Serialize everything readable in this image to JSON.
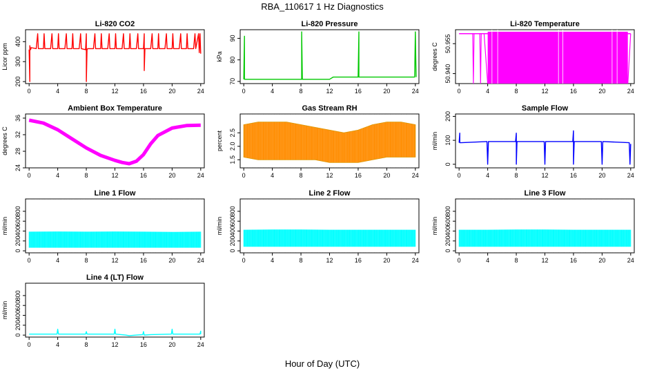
{
  "figure": {
    "title": "RBA_110617  1 Hz Diagnostics",
    "xlabel": "Hour of Day (UTC)"
  },
  "chart_data": [
    {
      "type": "line",
      "title": "Li-820 CO2",
      "ylabel": "Licor ppm",
      "color": "#ff0000",
      "xlim": [
        0,
        24
      ],
      "ylim": [
        190,
        460
      ],
      "xticks": [
        "0",
        "4",
        "8",
        "12",
        "16",
        "20",
        "24"
      ],
      "yticks": [
        "200",
        "300",
        "400"
      ],
      "ytick_values": [
        200,
        300,
        400
      ],
      "series": [
        {
          "x": [
            0.0,
            0.1,
            0.1,
            0.2,
            0.3,
            1.0,
            1.2,
            1.3,
            2.0,
            2.1,
            2.2,
            3.0,
            3.2,
            3.3,
            4.0,
            4.1,
            4.2,
            5.0,
            5.2,
            5.3,
            6.0,
            6.1,
            6.2,
            7.0,
            7.2,
            7.3,
            7.9,
            8.0,
            8.0,
            8.1,
            8.2,
            9.0,
            9.2,
            9.3,
            10.0,
            10.1,
            10.2,
            11.0,
            11.2,
            11.3,
            12.0,
            12.1,
            12.2,
            13.0,
            13.2,
            13.3,
            14.0,
            14.1,
            14.2,
            15.0,
            15.2,
            15.3,
            16.0,
            16.1,
            16.1,
            16.2,
            17.0,
            17.2,
            17.3,
            18.0,
            18.1,
            18.2,
            19.0,
            19.2,
            19.3,
            20.0,
            20.1,
            20.2,
            21.0,
            21.2,
            21.3,
            22.0,
            22.1,
            22.2,
            23.0,
            23.2,
            23.3,
            23.7,
            23.8,
            23.9,
            24.0
          ],
          "y": [
            360,
            200,
            380,
            360,
            370,
            365,
            440,
            365,
            365,
            440,
            365,
            365,
            440,
            365,
            365,
            440,
            365,
            365,
            440,
            365,
            365,
            440,
            365,
            365,
            440,
            365,
            360,
            440,
            200,
            360,
            365,
            365,
            440,
            365,
            365,
            440,
            365,
            365,
            440,
            365,
            365,
            440,
            365,
            365,
            440,
            365,
            365,
            440,
            365,
            365,
            440,
            365,
            365,
            440,
            255,
            365,
            365,
            440,
            365,
            365,
            440,
            365,
            365,
            440,
            365,
            365,
            440,
            365,
            365,
            440,
            365,
            365,
            440,
            365,
            365,
            440,
            365,
            440,
            345,
            440,
            340
          ]
        }
      ]
    },
    {
      "type": "line",
      "title": "Li-820 Pressure",
      "ylabel": "kPa",
      "color": "#00c800",
      "xlim": [
        0,
        24
      ],
      "ylim": [
        69,
        94
      ],
      "xticks": [
        "0",
        "4",
        "8",
        "12",
        "16",
        "20",
        "24"
      ],
      "yticks": [
        "70",
        "80",
        "90"
      ],
      "ytick_values": [
        70,
        80,
        90
      ],
      "series": [
        {
          "x": [
            0.0,
            0.1,
            0.1,
            0.2,
            0.4,
            8.0,
            8.1,
            8.1,
            8.2,
            12.0,
            12.5,
            15.9,
            16.0,
            16.1,
            16.1,
            16.2,
            20.0,
            23.8,
            23.9,
            24.0,
            24.1
          ],
          "y": [
            71,
            91,
            71,
            71,
            71,
            71,
            71,
            93,
            71,
            71,
            72,
            72,
            72,
            93,
            72,
            72,
            72,
            72,
            72,
            93,
            72
          ]
        }
      ]
    },
    {
      "type": "area",
      "title": "Li-820 Temperature",
      "ylabel": "degrees C",
      "color": "#ff00ff",
      "xlim": [
        0,
        24
      ],
      "ylim": [
        50.935,
        50.962
      ],
      "xticks": [
        "0",
        "4",
        "8",
        "12",
        "16",
        "20",
        "24"
      ],
      "yticks": [
        "50.940",
        "50.955"
      ],
      "ytick_values": [
        50.94,
        50.955
      ],
      "series": [
        {
          "x": [
            0.0,
            1.9,
            2.0,
            2.1,
            2.9,
            3.0,
            3.1,
            3.5,
            4.0,
            13.5,
            13.6,
            14.0,
            20.9,
            21.0,
            21.1,
            23.6,
            24.0
          ],
          "y": [
            50.96,
            50.96,
            50.935,
            50.96,
            50.96,
            50.935,
            50.96,
            50.96,
            50.935,
            50.935,
            50.96,
            50.935,
            50.935,
            50.96,
            50.935,
            50.935,
            50.96
          ]
        }
      ]
    },
    {
      "type": "line",
      "title": "Ambient Box Temperature",
      "ylabel": "degrees C",
      "color": "#ff00ff",
      "xlim": [
        0,
        24
      ],
      "ylim": [
        24,
        37
      ],
      "xticks": [
        "0",
        "4",
        "8",
        "12",
        "16",
        "20",
        "24"
      ],
      "yticks": [
        "24",
        "28",
        "32",
        "36"
      ],
      "ytick_values": [
        24,
        28,
        32,
        36
      ],
      "series": [
        {
          "x": [
            0,
            2,
            4,
            6,
            8,
            10,
            12,
            13,
            14,
            15,
            16,
            17,
            18,
            20,
            22,
            24
          ],
          "y": [
            35.5,
            34.8,
            33.2,
            31.0,
            28.8,
            27.0,
            25.8,
            25.3,
            25.0,
            25.6,
            27.2,
            29.8,
            31.8,
            33.6,
            34.2,
            34.3
          ]
        }
      ]
    },
    {
      "type": "area",
      "title": "Gas Stream RH",
      "ylabel": "percent",
      "color": "#ff8c00",
      "xlim": [
        0,
        24
      ],
      "ylim": [
        1.2,
        3.2
      ],
      "xticks": [
        "0",
        "4",
        "8",
        "12",
        "16",
        "20",
        "24"
      ],
      "yticks": [
        "1.5",
        "2.0",
        "2.5"
      ],
      "ytick_values": [
        1.5,
        2.0,
        2.5
      ],
      "series": [
        {
          "name": "",
          "x": [
            0,
            2,
            4,
            6,
            8,
            10,
            12,
            14,
            16,
            18,
            20,
            22,
            24
          ],
          "y": [
            2.8,
            2.9,
            2.9,
            2.9,
            2.8,
            2.7,
            2.6,
            2.5,
            2.6,
            2.8,
            2.9,
            2.9,
            2.8
          ]
        },
        {
          "name": "",
          "x": [
            0,
            2,
            4,
            6,
            8,
            10,
            12,
            14,
            16,
            18,
            20,
            22,
            24
          ],
          "y": [
            1.6,
            1.5,
            1.5,
            1.5,
            1.5,
            1.5,
            1.4,
            1.4,
            1.4,
            1.5,
            1.6,
            1.6,
            1.6
          ]
        }
      ]
    },
    {
      "type": "line",
      "title": "Sample Flow",
      "ylabel": "ml/min",
      "color": "#0000ff",
      "xlim": [
        0,
        24
      ],
      "ylim": [
        -15,
        210
      ],
      "xticks": [
        "0",
        "4",
        "8",
        "12",
        "16",
        "20",
        "24"
      ],
      "yticks": [
        "0",
        "100",
        "200"
      ],
      "ytick_values": [
        0,
        100,
        200
      ],
      "series": [
        {
          "x": [
            0.0,
            0.1,
            0.1,
            0.3,
            3.9,
            4.0,
            4.1,
            7.9,
            8.0,
            8.0,
            8.1,
            11.9,
            12.0,
            12.1,
            15.9,
            16.0,
            16.0,
            16.1,
            19.9,
            20.0,
            20.1,
            23.8,
            23.9,
            24.0
          ],
          "y": [
            90,
            130,
            90,
            90,
            95,
            0,
            95,
            95,
            130,
            0,
            95,
            95,
            0,
            95,
            95,
            140,
            0,
            95,
            95,
            0,
            95,
            90,
            0,
            85
          ]
        }
      ]
    },
    {
      "type": "area",
      "title": "Line 1 Flow",
      "ylabel": "ml/min",
      "color": "#00ffff",
      "xlim": [
        0,
        24
      ],
      "ylim": [
        -40,
        1050
      ],
      "xticks": [
        "0",
        "4",
        "8",
        "12",
        "16",
        "20",
        "24"
      ],
      "yticks": [
        "0",
        "200",
        "400",
        "600",
        "800"
      ],
      "ytick_values": [
        0,
        200,
        400,
        600,
        800
      ],
      "series": [
        {
          "name": "",
          "x": [
            0,
            4,
            8,
            12,
            16,
            20,
            24
          ],
          "y": [
            380,
            385,
            380,
            385,
            380,
            375,
            380
          ]
        },
        {
          "name": "",
          "x": [
            0,
            4,
            8,
            12,
            16,
            20,
            24
          ],
          "y": [
            70,
            70,
            70,
            70,
            70,
            70,
            70
          ]
        }
      ]
    },
    {
      "type": "area",
      "title": "Line 2 Flow",
      "ylabel": "ml/min",
      "color": "#00ffff",
      "xlim": [
        0,
        24
      ],
      "ylim": [
        -40,
        1050
      ],
      "xticks": [
        "0",
        "4",
        "8",
        "12",
        "16",
        "20",
        "24"
      ],
      "yticks": [
        "0",
        "200",
        "400",
        "600",
        "800"
      ],
      "ytick_values": [
        0,
        200,
        400,
        600,
        800
      ],
      "series": [
        {
          "name": "",
          "x": [
            0,
            4,
            8,
            12,
            16,
            20,
            24
          ],
          "y": [
            420,
            425,
            425,
            420,
            420,
            420,
            420
          ]
        },
        {
          "name": "",
          "x": [
            0,
            4,
            8,
            12,
            16,
            20,
            24
          ],
          "y": [
            90,
            90,
            90,
            90,
            90,
            90,
            90
          ]
        }
      ]
    },
    {
      "type": "area",
      "title": "Line 3 Flow",
      "ylabel": "ml/min",
      "color": "#00ffff",
      "xlim": [
        0,
        24
      ],
      "ylim": [
        -40,
        1050
      ],
      "xticks": [
        "0",
        "4",
        "8",
        "12",
        "16",
        "20",
        "24"
      ],
      "yticks": [
        "0",
        "200",
        "400",
        "600",
        "800"
      ],
      "ytick_values": [
        0,
        200,
        400,
        600,
        800
      ],
      "series": [
        {
          "name": "",
          "x": [
            0,
            4,
            8,
            12,
            16,
            20,
            24
          ],
          "y": [
            420,
            420,
            425,
            425,
            420,
            420,
            420
          ]
        },
        {
          "name": "",
          "x": [
            0,
            4,
            8,
            12,
            16,
            20,
            24
          ],
          "y": [
            90,
            90,
            90,
            90,
            90,
            90,
            90
          ]
        }
      ]
    },
    {
      "type": "line",
      "title": "Line 4 (LT) Flow",
      "ylabel": "ml/min",
      "color": "#00ffff",
      "xlim": [
        0,
        24
      ],
      "ylim": [
        -40,
        1050
      ],
      "xticks": [
        "0",
        "4",
        "8",
        "12",
        "16",
        "20",
        "24"
      ],
      "yticks": [
        "0",
        "200",
        "400",
        "600",
        "800"
      ],
      "ytick_values": [
        0,
        200,
        400,
        600,
        800
      ],
      "series": [
        {
          "x": [
            0.0,
            3.9,
            4.0,
            4.1,
            7.9,
            8.0,
            8.1,
            11.9,
            12.0,
            12.1,
            13.5,
            14.0,
            15.0,
            15.9,
            16.0,
            16.1,
            17.0,
            19.9,
            20.0,
            20.1,
            23.9,
            24.0,
            24.0
          ],
          "y": [
            20,
            20,
            120,
            20,
            20,
            70,
            20,
            20,
            120,
            20,
            0,
            -10,
            0,
            10,
            70,
            0,
            10,
            20,
            120,
            20,
            20,
            80,
            20
          ]
        }
      ]
    }
  ]
}
